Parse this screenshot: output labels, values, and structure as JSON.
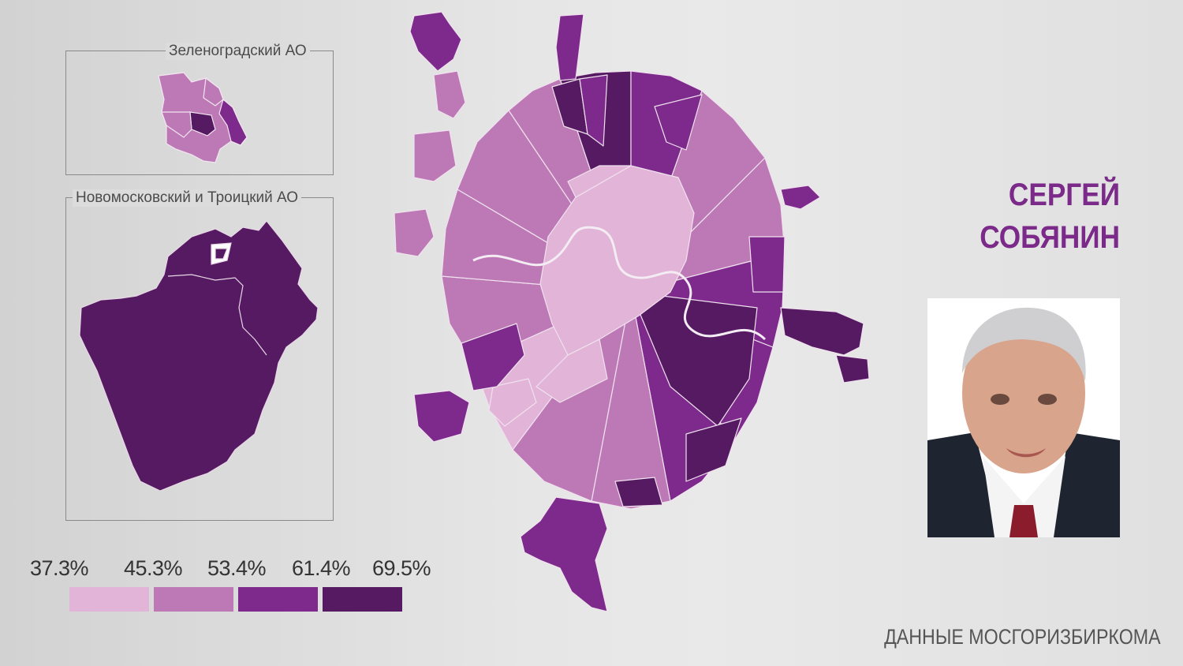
{
  "insets": {
    "zelenograd": {
      "label": "Зеленоградский АО"
    },
    "novomoskovsky": {
      "label": "Новомосковский и Троицкий АО"
    }
  },
  "legend": {
    "values": [
      "37.3%",
      "45.3%",
      "53.4%",
      "61.4%",
      "69.5%"
    ],
    "colors": [
      "#e2b4d8",
      "#bd79b6",
      "#7d2a8c",
      "#561a63"
    ]
  },
  "candidate": {
    "line1": "СЕРГЕЙ",
    "line2": "СОБЯНИН"
  },
  "source": "ДАННЫЕ МОСГОРИЗБИРКОМА",
  "palette": {
    "light": "#e2b4d8",
    "medium": "#bd79b6",
    "dark": "#7d2a8c",
    "darkest": "#561a63",
    "candidate_text": "#7b2a8a"
  }
}
